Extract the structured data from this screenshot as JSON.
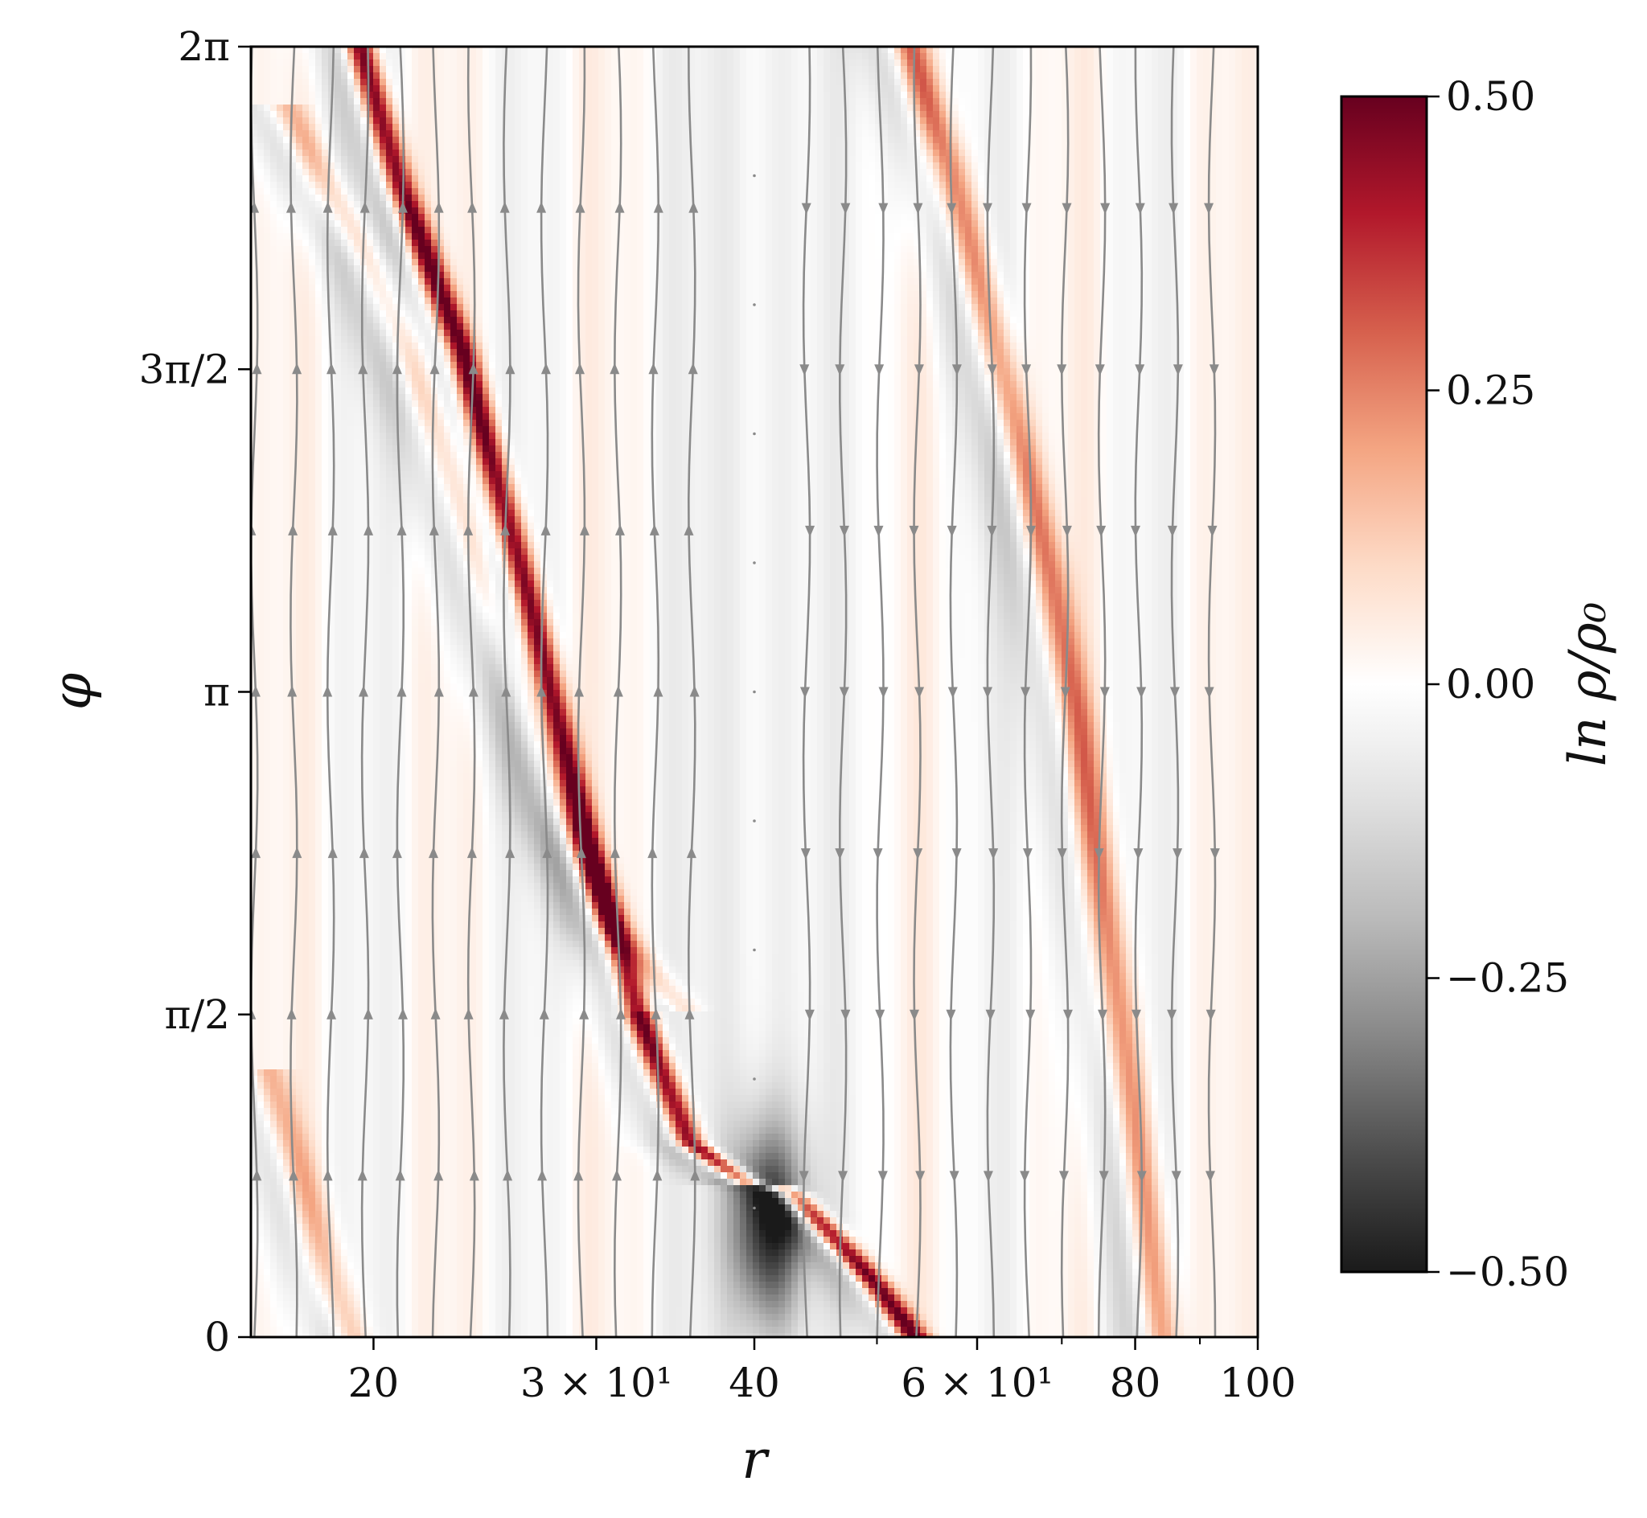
{
  "chart_data": {
    "type": "heatmap",
    "title": "",
    "xlabel": "r",
    "ylabel": "φ",
    "xscale": "log",
    "xlim": [
      16,
      100
    ],
    "ylim": [
      0,
      6.2832
    ],
    "x_ticks": [
      {
        "value": 20,
        "label": "20"
      },
      {
        "value": 30,
        "label": "3 × 10¹"
      },
      {
        "value": 40,
        "label": "40"
      },
      {
        "value": 60,
        "label": "6 × 10¹"
      },
      {
        "value": 80,
        "label": "80"
      },
      {
        "value": 100,
        "label": "100"
      }
    ],
    "x_minor_ticks": [
      50,
      70,
      90
    ],
    "y_ticks": [
      {
        "value": 0,
        "label": "0"
      },
      {
        "value": 1.5708,
        "label": "π/2"
      },
      {
        "value": 3.1416,
        "label": "π"
      },
      {
        "value": 4.7124,
        "label": "3π/2"
      },
      {
        "value": 6.2832,
        "label": "2π"
      }
    ],
    "colorbar": {
      "label": "ln ρ/ρ₀",
      "range": [
        -0.5,
        0.5
      ],
      "ticks": [
        {
          "value": 0.5,
          "label": "0.50"
        },
        {
          "value": 0.25,
          "label": "0.25"
        },
        {
          "value": 0,
          "label": "0.00"
        },
        {
          "value": -0.25,
          "label": "−0.25"
        },
        {
          "value": -0.5,
          "label": "−0.50"
        }
      ],
      "colormap": "RdGy_r",
      "colors": [
        "#1a1a1a",
        "#4d4d4d",
        "#878787",
        "#bababa",
        "#e0e0e0",
        "#ffffff",
        "#fddbc7",
        "#f4a582",
        "#d6604d",
        "#b2182b",
        "#67001f"
      ]
    },
    "spiral_arms": [
      {
        "name": "main",
        "points": [
          [
            19.5,
            6.28
          ],
          [
            21.0,
            5.6
          ],
          [
            23.5,
            4.8
          ],
          [
            26.5,
            3.6
          ],
          [
            29.5,
            2.4
          ],
          [
            32.5,
            1.55
          ],
          [
            35.5,
            0.95
          ],
          [
            39.5,
            0.75
          ],
          [
            42.5,
            0.72
          ],
          [
            46.0,
            0.5
          ],
          [
            50.0,
            0.25
          ],
          [
            53.5,
            0.0
          ]
        ],
        "amplitude": 0.55
      },
      {
        "name": "secondary",
        "points": [
          [
            17.0,
            6.0
          ],
          [
            20.0,
            5.2
          ],
          [
            22.5,
            4.4
          ],
          [
            25.0,
            3.5
          ],
          [
            28.0,
            2.6
          ],
          [
            31.0,
            2.0
          ],
          [
            35.0,
            1.6
          ]
        ],
        "amplitude": 0.18
      },
      {
        "name": "outer",
        "points": [
          [
            53.0,
            6.28
          ],
          [
            57.0,
            5.7
          ],
          [
            61.0,
            5.0
          ],
          [
            65.0,
            4.3
          ],
          [
            68.5,
            3.7
          ],
          [
            72.0,
            3.0
          ],
          [
            76.0,
            2.0
          ],
          [
            80.0,
            1.0
          ],
          [
            84.0,
            0.0
          ]
        ],
        "amplitude": 0.3
      },
      {
        "name": "inner-lower",
        "points": [
          [
            16.5,
            1.3
          ],
          [
            17.5,
            0.8
          ],
          [
            18.5,
            0.3
          ],
          [
            19.2,
            0.0
          ]
        ],
        "amplitude": 0.2
      }
    ],
    "density_deficit": {
      "center": [
        41,
        0.55
      ],
      "amplitude": -0.45
    },
    "streamlines": {
      "color": "#8a8a8a",
      "inner_positions": [
        16.1,
        17.3,
        18.5,
        19.7,
        21.0,
        22.4,
        23.9,
        25.5,
        27.3,
        29.2,
        31.2,
        33.4,
        35.7
      ],
      "outer_positions": [
        44.0,
        47.0,
        50.3,
        53.8,
        57.5,
        61.5,
        65.8,
        70.4,
        75.3,
        80.5,
        86.0,
        92.0
      ],
      "inner_direction": "up",
      "outer_direction": "down",
      "corotation_radius": 40
    }
  }
}
